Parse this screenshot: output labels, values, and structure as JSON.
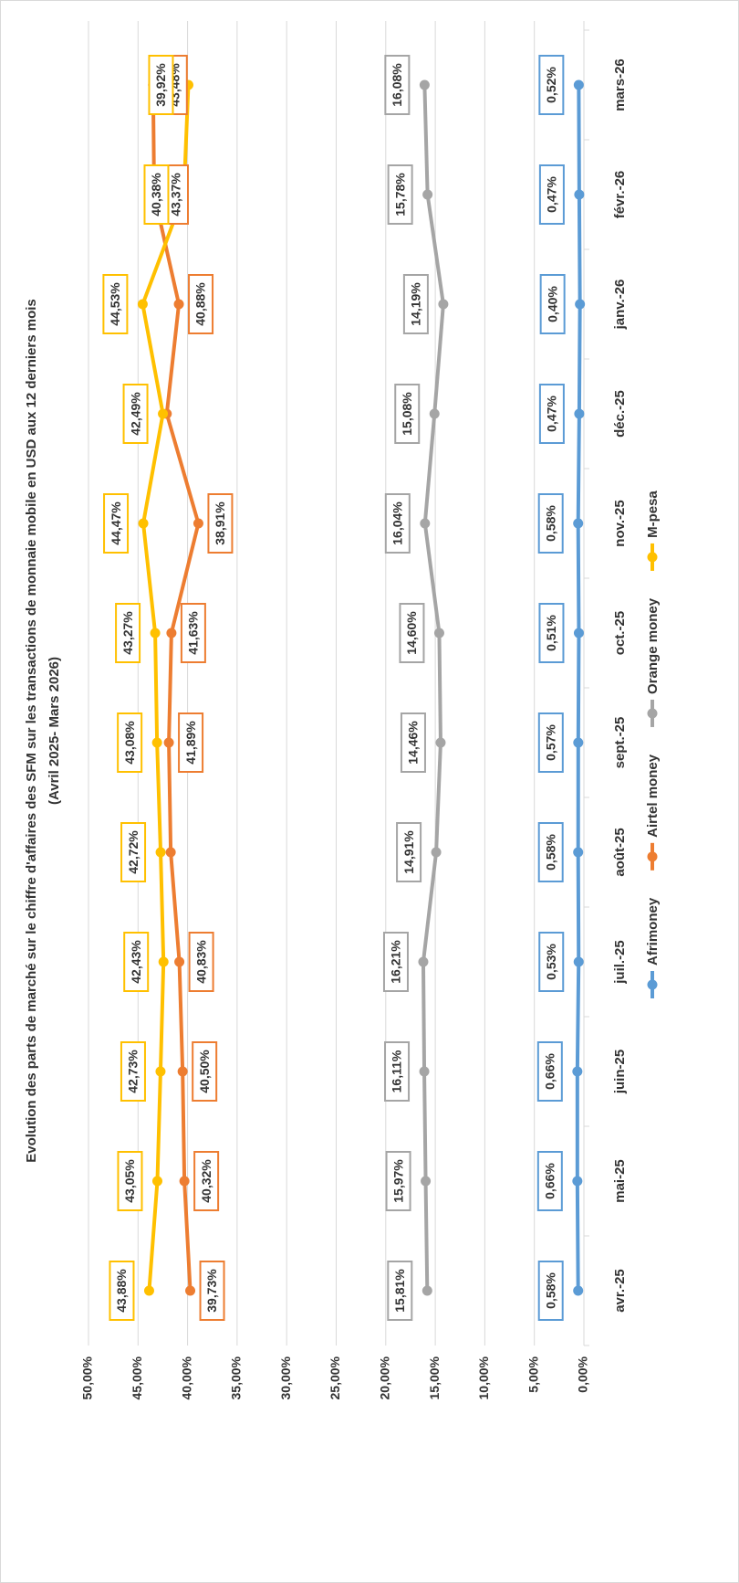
{
  "chart_data": {
    "type": "line",
    "title": "Evolution des parts de marché sur le chiffre d'affaires des SFM sur les transactions de monnaie mobile en USD  aux 12 derniers mois",
    "subtitle": "(Avril 2025- Mars 2026)",
    "categories": [
      "avr.-25",
      "mai-25",
      "juin-25",
      "juil.-25",
      "août-25",
      "sept.-25",
      "oct.-25",
      "nov.-25",
      "déc.-25",
      "janv.-26",
      "févr.-26",
      "mars-26"
    ],
    "series": [
      {
        "name": "Afrimoney",
        "color": "#5b9bd5",
        "values": [
          0.58,
          0.66,
          0.66,
          0.53,
          0.58,
          0.57,
          0.51,
          0.58,
          0.47,
          0.4,
          0.47,
          0.52
        ],
        "value_labels": [
          "0,58%",
          "0,66%",
          "0,66%",
          "0,53%",
          "0,58%",
          "0,57%",
          "0,51%",
          "0,58%",
          "0,47%",
          "0,40%",
          "0,47%",
          "0,52%"
        ]
      },
      {
        "name": "Airtel money",
        "color": "#ed7d31",
        "values": [
          39.73,
          40.32,
          40.5,
          40.83,
          41.7,
          41.89,
          41.63,
          38.91,
          42.1,
          40.88,
          43.37,
          43.48
        ],
        "value_labels": [
          "39,73%",
          "40,32%",
          "40,50%",
          "40,83%",
          null,
          "41,89%",
          "41,63%",
          "38,91%",
          null,
          "40,88%",
          "43,37%",
          "43,48%"
        ]
      },
      {
        "name": "Orange money",
        "color": "#a5a5a5",
        "values": [
          15.81,
          15.97,
          16.11,
          16.21,
          14.91,
          14.46,
          14.6,
          16.04,
          15.08,
          14.19,
          15.78,
          16.08
        ],
        "value_labels": [
          "15,81%",
          "15,97%",
          "16,11%",
          "16,21%",
          "14,91%",
          "14,46%",
          "14,60%",
          "16,04%",
          "15,08%",
          "14,19%",
          "15,78%",
          "16,08%"
        ]
      },
      {
        "name": "M-pesa",
        "color": "#ffc000",
        "values": [
          43.88,
          43.05,
          42.73,
          42.43,
          42.72,
          43.08,
          43.27,
          44.47,
          42.49,
          44.53,
          40.38,
          39.92
        ],
        "value_labels": [
          "43,88%",
          "43,05%",
          "42,73%",
          "42,43%",
          "42,72%",
          "43,08%",
          "43,27%",
          "44,47%",
          "42,49%",
          "44,53%",
          "40,38%",
          "39,92%"
        ]
      }
    ],
    "ylim": [
      0,
      50
    ],
    "yticks": [
      {
        "value": 0,
        "label": "0,00%"
      },
      {
        "value": 5,
        "label": "5,00%"
      },
      {
        "value": 10,
        "label": "10,00%"
      },
      {
        "value": 15,
        "label": "15,00%"
      },
      {
        "value": 20,
        "label": "20,00%"
      },
      {
        "value": 25,
        "label": "25,00%"
      },
      {
        "value": 30,
        "label": "30,00%"
      },
      {
        "value": 35,
        "label": "35,00%"
      },
      {
        "value": 40,
        "label": "40,00%"
      },
      {
        "value": 45,
        "label": "45,00%"
      },
      {
        "value": 50,
        "label": "50,00%"
      }
    ],
    "grid": true,
    "legend": "bottom"
  }
}
